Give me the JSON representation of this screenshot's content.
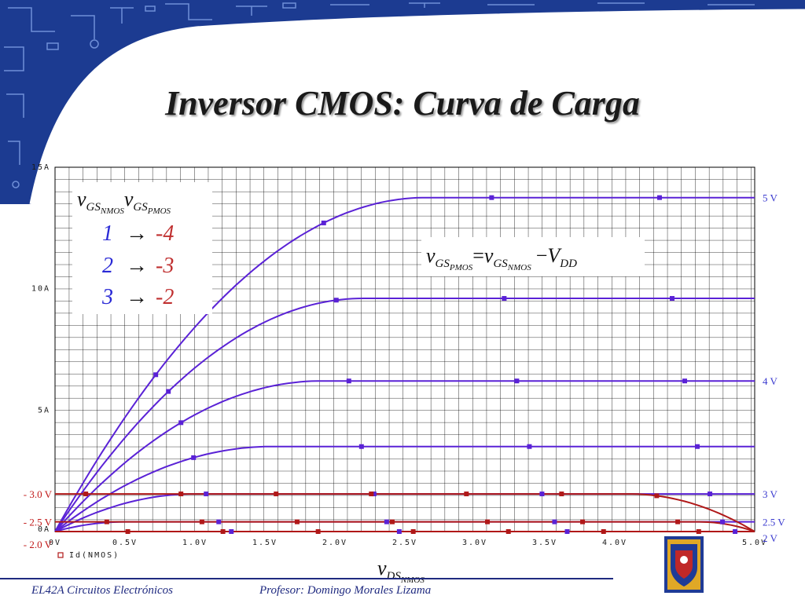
{
  "slide": {
    "title": "Inversor CMOS: Curva de Carga",
    "course": "EL42A Circuitos Electrónicos",
    "professor": "Profesor: Domingo Morales Lizama"
  },
  "legend_box": {
    "header_nmos": "v",
    "header_nmos_sub": "GS",
    "header_nmos_subsub": "NMOS",
    "header_pmos": "v",
    "header_pmos_sub": "GS",
    "header_pmos_subsub": "PMOS",
    "rows": [
      {
        "nmos": "1",
        "arrow": "→",
        "pmos": "-4"
      },
      {
        "nmos": "2",
        "arrow": "→",
        "pmos": "-3"
      },
      {
        "nmos": "3",
        "arrow": "→",
        "pmos": "-2"
      }
    ]
  },
  "equation": {
    "lhs": "v",
    "lhs_sub": "GS",
    "lhs_subsub": "PMOS",
    "eq": "=",
    "rhs": "v",
    "rhs_sub": "GS",
    "rhs_subsub": "NMOS",
    "minus": "−",
    "vdd": "V",
    "vdd_sub": "DD"
  },
  "x_axis_label": {
    "main": "v",
    "sub": "DS",
    "subsub": "NMOS"
  },
  "colors": {
    "nmos": "#5a22d6",
    "pmos": "#b01818",
    "right_labels": "#3a3acf",
    "left_labels": "#c01818",
    "banner": "#1c3b91",
    "grid": "#000000",
    "text": "#1a1a1a"
  },
  "chart_data": {
    "type": "line",
    "title": "",
    "xlabel": "vDS NMOS",
    "ylabel": "",
    "xlim": [
      0,
      5.0
    ],
    "ylim": [
      0,
      15
    ],
    "x_ticks": [
      "0V",
      "0.5V",
      "1.0V",
      "1.5V",
      "2.0V",
      "2.5V",
      "3.0V",
      "3.5V",
      "4.0V",
      "5.0V"
    ],
    "x_tick_values": [
      0,
      0.5,
      1.0,
      1.5,
      2.0,
      2.5,
      3.0,
      3.5,
      4.0,
      5.0
    ],
    "y_ticks": [
      "0A",
      "5A",
      "10A",
      "15A"
    ],
    "y_tick_values": [
      0,
      5,
      10,
      15
    ],
    "legend_entry": "Id(NMOS)",
    "grid": true,
    "nmos_series": [
      {
        "label": "5 V",
        "vov": 2.65,
        "isat": 13.75
      },
      {
        "label": "",
        "vov": 2.2,
        "isat": 9.6
      },
      {
        "label": "4 V",
        "vov": 1.9,
        "isat": 6.2
      },
      {
        "label": "",
        "vov": 1.55,
        "isat": 3.5
      },
      {
        "label": "3 V",
        "vov": 1.0,
        "isat": 1.55
      },
      {
        "label": "2.5 V",
        "vov": 0.5,
        "isat": 0.4
      },
      {
        "label": "2 V",
        "vov": 0.0,
        "isat": 0.0
      }
    ],
    "pmos_series": [
      {
        "label": "- 3.0 V",
        "isat": 1.55,
        "v_knee": 4.1
      },
      {
        "label": "- 2.5 V",
        "isat": 0.4,
        "v_knee": 4.6
      },
      {
        "label": "- 2.0 V",
        "isat": 0.0,
        "v_knee": 5.0
      }
    ]
  }
}
